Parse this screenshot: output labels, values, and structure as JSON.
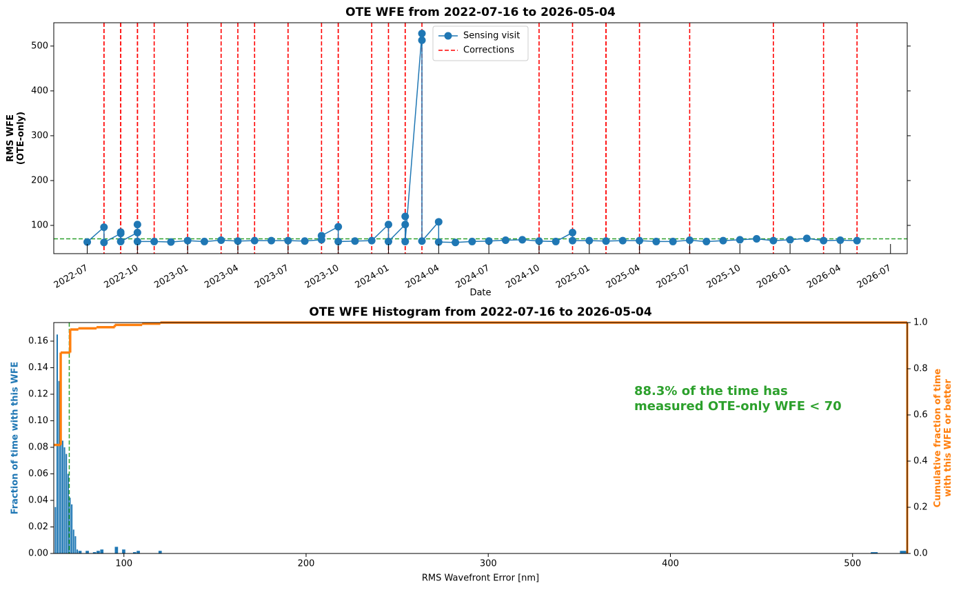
{
  "chart_data": [
    {
      "type": "line",
      "title": "OTE WFE from 2022-07-16 to 2026-05-04",
      "x_label": "Date",
      "y_label": [
        "RMS WFE",
        "(OTE-only)"
      ],
      "x": [
        "2022-07",
        "2022-08",
        "2022-08",
        "2022-09",
        "2022-09",
        "2022-09",
        "2022-10",
        "2022-10",
        "2022-10",
        "2022-11",
        "2022-12",
        "2023-01",
        "2023-02",
        "2023-03",
        "2023-04",
        "2023-05",
        "2023-06",
        "2023-07",
        "2023-08",
        "2023-09",
        "2023-09",
        "2023-10",
        "2023-10",
        "2023-11",
        "2023-12",
        "2024-01",
        "2024-01",
        "2024-02",
        "2024-02",
        "2024-02",
        "2024-03",
        "2024-03",
        "2024-03",
        "2024-04",
        "2024-04",
        "2024-05",
        "2024-06",
        "2024-07",
        "2024-08",
        "2024-09",
        "2024-10",
        "2024-11",
        "2024-12",
        "2024-12",
        "2025-01",
        "2025-02",
        "2025-03",
        "2025-04",
        "2025-05",
        "2025-06",
        "2025-07",
        "2025-08",
        "2025-09",
        "2025-10",
        "2025-11",
        "2025-12",
        "2026-01",
        "2026-02",
        "2026-03",
        "2026-04",
        "2026-05"
      ],
      "series": [
        {
          "name": "Sensing visit",
          "color": "#1f77b4",
          "values": [
            63,
            96,
            62,
            82,
            85,
            64,
            84,
            102,
            64,
            64,
            63,
            66,
            64,
            67,
            65,
            66,
            66,
            66,
            65,
            68,
            77,
            97,
            64,
            65,
            66,
            102,
            64,
            102,
            120,
            64,
            528,
            513,
            65,
            108,
            63,
            62,
            64,
            65,
            67,
            68,
            65,
            64,
            84,
            66,
            66,
            65,
            66,
            66,
            64,
            64,
            67,
            64,
            66,
            68,
            70,
            66,
            68,
            71,
            66,
            67,
            66
          ]
        }
      ],
      "corrections": {
        "name": "Corrections",
        "color": "#ff0000",
        "x": [
          "2022-08",
          "2022-08",
          "2022-09",
          "2022-09",
          "2022-10",
          "2022-10",
          "2022-11",
          "2023-01",
          "2023-03",
          "2023-04",
          "2023-05",
          "2023-07",
          "2023-09",
          "2023-10",
          "2023-10",
          "2023-12",
          "2024-01",
          "2024-02",
          "2024-02",
          "2024-03",
          "2024-10",
          "2024-12",
          "2025-02",
          "2025-02",
          "2025-04",
          "2025-07",
          "2025-12",
          "2026-03",
          "2026-05"
        ]
      },
      "threshold": 70,
      "threshold_color": "#2ca02c",
      "xlim": [
        "2022-05",
        "2026-08"
      ],
      "xticks": [
        "2022-07",
        "2022-10",
        "2023-01",
        "2023-04",
        "2023-07",
        "2023-10",
        "2024-01",
        "2024-04",
        "2024-07",
        "2024-10",
        "2025-01",
        "2025-04",
        "2025-07",
        "2025-10",
        "2026-01",
        "2026-04",
        "2026-07"
      ],
      "ylim": [
        37,
        552
      ],
      "yticks": [
        100,
        200,
        300,
        400,
        500
      ],
      "legend": "upper center"
    },
    {
      "type": "histogram",
      "title": "OTE WFE Histogram from 2022-07-16 to 2026-05-04",
      "x_label": "RMS Wavefront Error [nm]",
      "y_label": "Fraction of time with this WFE",
      "y2_label": [
        "Cumulative fraction of time",
        "with this WFE or better"
      ],
      "color": "#1f77b4",
      "bins": [
        62,
        63,
        64,
        65,
        66,
        67,
        68,
        69,
        70,
        71,
        72,
        73,
        74,
        75,
        77,
        79,
        81,
        83,
        85,
        87,
        89,
        91,
        93,
        95,
        97,
        99,
        101,
        103,
        105,
        107,
        109,
        111,
        113,
        115,
        117,
        119,
        121,
        123,
        510,
        514,
        526,
        530
      ],
      "values": [
        0.035,
        0.165,
        0.13,
        0.1,
        0.085,
        0.08,
        0.075,
        0.06,
        0.042,
        0.037,
        0.018,
        0.013,
        0.003,
        0.002,
        0,
        0.002,
        0,
        0.001,
        0.002,
        0.003,
        0,
        0,
        0,
        0.005,
        0,
        0.003,
        0,
        0,
        0.001,
        0.002,
        0,
        0,
        0,
        0,
        0,
        0.002,
        0,
        0,
        0.001,
        0,
        0.002
      ],
      "cumulative": {
        "color": "#ff7f0e",
        "axis": "y2",
        "x": [
          61.5,
          65.3,
          70.5,
          75,
          85,
          95,
          110,
          120
        ],
        "values": [
          0.47,
          0.87,
          0.97,
          0.975,
          0.98,
          0.99,
          0.995,
          1.0
        ]
      },
      "threshold": 70,
      "threshold_color": "#2ca02c",
      "annotation": [
        "88.3% of the time has",
        "measured OTE-only WFE < 70"
      ],
      "xlim": [
        61.5,
        530
      ],
      "xticks": [
        100,
        200,
        300,
        400,
        500
      ],
      "ylim": [
        0,
        0.174
      ],
      "yticks": [
        {
          "value": 0,
          "label": "0.00"
        },
        {
          "value": 0.02,
          "label": "0.02"
        },
        {
          "value": 0.04,
          "label": "0.04"
        },
        {
          "value": 0.06,
          "label": "0.06"
        },
        {
          "value": 0.08,
          "label": "0.08"
        },
        {
          "value": 0.1,
          "label": "0.10"
        },
        {
          "value": 0.12,
          "label": "0.12"
        },
        {
          "value": 0.14,
          "label": "0.14"
        },
        {
          "value": 0.16,
          "label": "0.16"
        }
      ],
      "y2lim": [
        0,
        1
      ],
      "y2ticks": [
        {
          "value": 0,
          "label": "0.0"
        },
        {
          "value": 0.2,
          "label": "0.2"
        },
        {
          "value": 0.4,
          "label": "0.4"
        },
        {
          "value": 0.6,
          "label": "0.6"
        },
        {
          "value": 0.8,
          "label": "0.8"
        },
        {
          "value": 1,
          "label": "1.0"
        }
      ]
    }
  ]
}
